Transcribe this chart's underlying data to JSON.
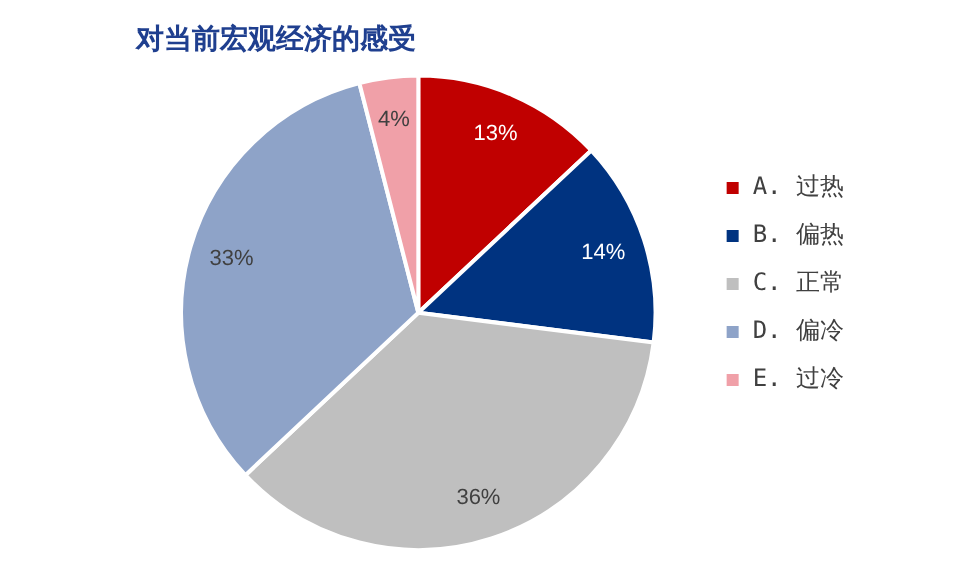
{
  "chart_data": {
    "type": "pie",
    "title": "对当前宏观经济的感受",
    "categories": [
      "A. 过热",
      "B. 偏热",
      "C. 正常",
      "D. 偏冷",
      "E. 过冷"
    ],
    "values": [
      13,
      14,
      36,
      33,
      4
    ],
    "colors": [
      "#c00000",
      "#003380",
      "#bfbfbf",
      "#8ea3c8",
      "#f0a0a8"
    ],
    "value_labels": [
      "13%",
      "14%",
      "36%",
      "33%",
      "4%"
    ],
    "legend": "right"
  }
}
